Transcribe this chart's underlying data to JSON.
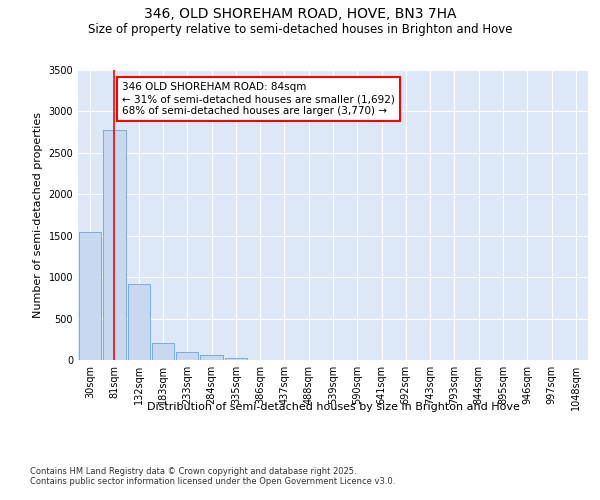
{
  "title1": "346, OLD SHOREHAM ROAD, HOVE, BN3 7HA",
  "title2": "Size of property relative to semi-detached houses in Brighton and Hove",
  "xlabel": "Distribution of semi-detached houses by size in Brighton and Hove",
  "ylabel": "Number of semi-detached properties",
  "categories": [
    "30sqm",
    "81sqm",
    "132sqm",
    "183sqm",
    "233sqm",
    "284sqm",
    "335sqm",
    "386sqm",
    "437sqm",
    "488sqm",
    "539sqm",
    "590sqm",
    "641sqm",
    "692sqm",
    "743sqm",
    "793sqm",
    "844sqm",
    "895sqm",
    "946sqm",
    "997sqm",
    "1048sqm"
  ],
  "values": [
    1540,
    2780,
    920,
    210,
    100,
    55,
    25,
    3,
    0,
    0,
    0,
    0,
    0,
    0,
    0,
    0,
    0,
    0,
    0,
    0,
    0
  ],
  "bar_color": "#c8d8f0",
  "bar_edge_color": "#7aabdb",
  "red_line_x": 1,
  "annotation_line1": "346 OLD SHOREHAM ROAD: 84sqm",
  "annotation_line2": "← 31% of semi-detached houses are smaller (1,692)",
  "annotation_line3": "68% of semi-detached houses are larger (3,770) →",
  "ylim": [
    0,
    3500
  ],
  "yticks": [
    0,
    500,
    1000,
    1500,
    2000,
    2500,
    3000,
    3500
  ],
  "fig_bg_color": "#ffffff",
  "plot_bg_color": "#dce8f8",
  "grid_color": "#ffffff",
  "footer1": "Contains HM Land Registry data © Crown copyright and database right 2025.",
  "footer2": "Contains public sector information licensed under the Open Government Licence v3.0.",
  "title1_fontsize": 10,
  "title2_fontsize": 8.5,
  "axis_label_fontsize": 8,
  "tick_fontsize": 7,
  "annotation_fontsize": 7.5,
  "footer_fontsize": 6
}
